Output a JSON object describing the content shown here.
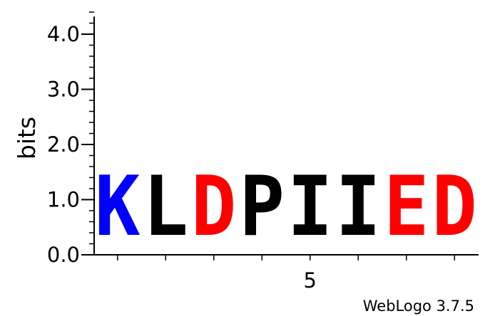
{
  "chart_data": {
    "type": "sequence-logo",
    "ylabel": "bits",
    "ylim": [
      0,
      4.32
    ],
    "y_major_ticks": [
      {
        "value": 0,
        "label": "0.0"
      },
      {
        "value": 1,
        "label": "1.0"
      },
      {
        "value": 2,
        "label": "2.0"
      },
      {
        "value": 3,
        "label": "3.0"
      },
      {
        "value": 4,
        "label": "4.0"
      }
    ],
    "y_minor_step": 0.2,
    "positions": [
      1,
      2,
      3,
      4,
      5,
      6,
      7,
      8
    ],
    "x_tick_labels": [
      {
        "position": 5,
        "label": "5"
      }
    ],
    "columns": [
      {
        "position": 1,
        "letter": "K",
        "bits": 1.75,
        "color": "#0000ff"
      },
      {
        "position": 2,
        "letter": "L",
        "bits": 1.75,
        "color": "#000000"
      },
      {
        "position": 3,
        "letter": "D",
        "bits": 1.75,
        "color": "#ff0000"
      },
      {
        "position": 4,
        "letter": "P",
        "bits": 1.75,
        "color": "#000000"
      },
      {
        "position": 5,
        "letter": "I",
        "bits": 1.75,
        "color": "#000000"
      },
      {
        "position": 6,
        "letter": "I",
        "bits": 1.75,
        "color": "#000000"
      },
      {
        "position": 7,
        "letter": "E",
        "bits": 1.75,
        "color": "#ff0000"
      },
      {
        "position": 8,
        "letter": "D",
        "bits": 1.75,
        "color": "#ff0000"
      }
    ],
    "footer": "WebLogo 3.7.5"
  }
}
